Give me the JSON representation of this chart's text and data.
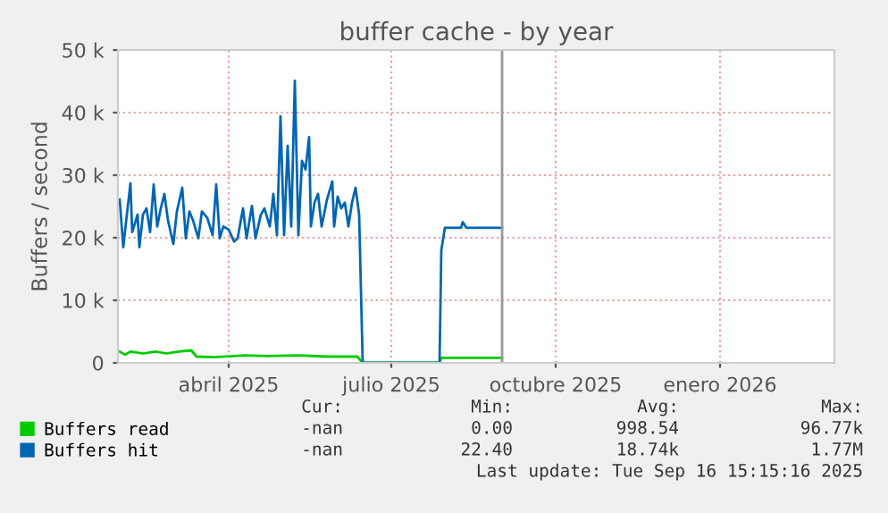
{
  "chart_data": {
    "type": "line",
    "title": "buffer cache - by year",
    "ylabel": "Buffers / second",
    "xlim": [
      "2025-01-29",
      "2026-03-06"
    ],
    "xticks": [
      {
        "value": "2025-04-01",
        "label": "abril 2025"
      },
      {
        "value": "2025-07-01",
        "label": "julio 2025"
      },
      {
        "value": "2025-10-01",
        "label": "octubre 2025"
      },
      {
        "value": "2026-01-01",
        "label": "enero 2026"
      }
    ],
    "ylim": [
      0,
      50000
    ],
    "yticks": [
      0,
      {
        "value": 10000,
        "label": "10 k"
      },
      {
        "value": 20000,
        "label": "20 k"
      },
      {
        "value": 30000,
        "label": "30 k"
      },
      {
        "value": 40000,
        "label": "40 k"
      },
      {
        "value": 50000,
        "label": "50 k"
      }
    ],
    "grid": true,
    "legend": "bottom",
    "line_style": "solid",
    "ref_lines": [
      {
        "axis": "x",
        "value": "2025-09-01",
        "color": "#999999"
      }
    ],
    "annotations": [
      "Cur:",
      "Min:",
      "Avg:",
      "Max:",
      "-nan",
      "0.00",
      "998.54",
      "96.77k",
      "-nan",
      "22.40",
      "18.74k",
      "1.77M",
      "Last update: Tue Sep 16 15:15:16 2025"
    ],
    "series": [
      {
        "name": "Buffers read",
        "color": "#00cc00",
        "x": [
          "2025-01-30",
          "2025-02-02",
          "2025-02-05",
          "2025-02-12",
          "2025-02-19",
          "2025-02-25",
          "2025-03-04",
          "2025-03-11",
          "2025-03-14",
          "2025-03-24",
          "2025-04-10",
          "2025-04-23",
          "2025-05-10",
          "2025-05-26",
          "2025-06-12",
          "2025-06-15",
          "2025-07-28",
          "2025-07-29",
          "2025-09-01"
        ],
        "values": [
          1800,
          1300,
          1800,
          1500,
          1800,
          1500,
          1800,
          2000,
          1000,
          900,
          1200,
          1100,
          1200,
          1000,
          1000,
          0,
          0,
          800,
          800
        ]
      },
      {
        "name": "Buffers hit",
        "color": "#0066b3",
        "x": [
          "2025-01-30",
          "2025-02-01",
          "2025-02-03",
          "2025-02-05",
          "2025-02-06",
          "2025-02-09",
          "2025-02-10",
          "2025-02-12",
          "2025-02-14",
          "2025-02-16",
          "2025-02-18",
          "2025-02-20",
          "2025-02-22",
          "2025-02-24",
          "2025-02-26",
          "2025-03-01",
          "2025-03-03",
          "2025-03-06",
          "2025-03-08",
          "2025-03-10",
          "2025-03-12",
          "2025-03-15",
          "2025-03-17",
          "2025-03-20",
          "2025-03-23",
          "2025-03-25",
          "2025-03-27",
          "2025-03-29",
          "2025-04-01",
          "2025-04-04",
          "2025-04-06",
          "2025-04-09",
          "2025-04-11",
          "2025-04-14",
          "2025-04-16",
          "2025-04-19",
          "2025-04-21",
          "2025-04-24",
          "2025-04-26",
          "2025-04-28",
          "2025-04-30",
          "2025-05-02",
          "2025-05-04",
          "2025-05-06",
          "2025-05-08",
          "2025-05-10",
          "2025-05-12",
          "2025-05-14",
          "2025-05-16",
          "2025-05-17",
          "2025-05-19",
          "2025-05-21",
          "2025-05-23",
          "2025-05-26",
          "2025-05-29",
          "2025-05-30",
          "2025-06-01",
          "2025-06-03",
          "2025-06-05",
          "2025-06-07",
          "2025-06-09",
          "2025-06-11",
          "2025-06-13",
          "2025-06-15",
          "2025-06-29",
          "2025-07-28",
          "2025-07-29",
          "2025-07-31",
          "2025-08-09",
          "2025-08-10",
          "2025-08-12",
          "2025-09-01"
        ],
        "values": [
          26100,
          18500,
          23700,
          28700,
          20900,
          23700,
          18500,
          23700,
          24700,
          20900,
          28500,
          21800,
          24700,
          27000,
          22800,
          19000,
          24200,
          28000,
          19900,
          24200,
          22800,
          19900,
          24200,
          23200,
          20400,
          28500,
          19900,
          21800,
          21300,
          19400,
          19900,
          24700,
          19900,
          25100,
          19900,
          23700,
          24700,
          21800,
          27000,
          20400,
          39400,
          20400,
          34700,
          21800,
          45100,
          20400,
          32300,
          30900,
          36100,
          21800,
          25600,
          27000,
          21800,
          26100,
          29000,
          21800,
          26600,
          24700,
          25600,
          21800,
          25600,
          28000,
          23700,
          0,
          0,
          0,
          18000,
          21600,
          21600,
          22500,
          21600,
          21600
        ]
      }
    ]
  }
}
